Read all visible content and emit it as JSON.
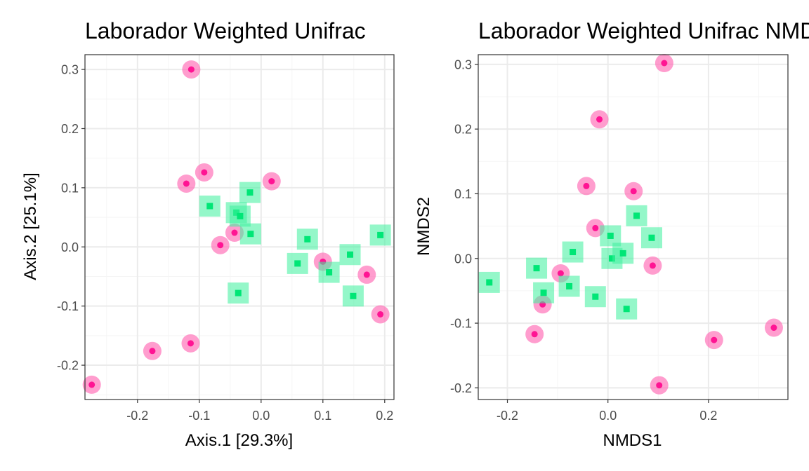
{
  "colors": {
    "circle_outer": "#ff69b4",
    "circle_inner": "#ff1493",
    "square_outer": "#3cf09c",
    "square_inner": "#00e676",
    "grid_major": "#ebebeb",
    "grid_minor": "#f5f5f5",
    "panel_border": "#333333",
    "tick_text": "#4d4d4d"
  },
  "chart_data": [
    {
      "type": "scatter",
      "title": "Laborador Weighted Unifrac",
      "xlabel": "Axis.1   [29.3%]",
      "ylabel": "Axis.2   [25.1%]",
      "xlim": [
        -0.285,
        0.215
      ],
      "ylim": [
        -0.258,
        0.325
      ],
      "xticks": [
        -0.2,
        -0.1,
        0.0,
        0.1,
        0.2
      ],
      "xtick_labels": [
        "-0.2",
        "-0.1",
        "0.0",
        "0.1",
        "0.2"
      ],
      "yticks": [
        -0.2,
        -0.1,
        0.0,
        0.1,
        0.2,
        0.3
      ],
      "ytick_labels": [
        "-0.2",
        "-0.1",
        "0.0",
        "0.1",
        "0.2",
        "0.3"
      ],
      "grid": true,
      "series": [
        {
          "marker": "circle",
          "points": [
            [
              -0.113,
              0.3
            ],
            [
              -0.092,
              0.126
            ],
            [
              -0.121,
              0.107
            ],
            [
              0.017,
              0.111
            ],
            [
              -0.066,
              0.003
            ],
            [
              -0.043,
              0.024
            ],
            [
              0.1,
              -0.025
            ],
            [
              0.171,
              -0.047
            ],
            [
              0.193,
              -0.114
            ],
            [
              -0.176,
              -0.176
            ],
            [
              -0.114,
              -0.163
            ],
            [
              -0.274,
              -0.233
            ]
          ]
        },
        {
          "marker": "square",
          "points": [
            [
              -0.083,
              0.069
            ],
            [
              -0.018,
              0.092
            ],
            [
              -0.04,
              0.058
            ],
            [
              -0.034,
              0.052
            ],
            [
              -0.017,
              0.022
            ],
            [
              0.075,
              0.013
            ],
            [
              0.059,
              -0.028
            ],
            [
              0.11,
              -0.043
            ],
            [
              0.144,
              -0.013
            ],
            [
              0.149,
              -0.083
            ],
            [
              0.193,
              0.02
            ],
            [
              -0.037,
              -0.078
            ]
          ]
        }
      ]
    },
    {
      "type": "scatter",
      "title": "Laborador Weighted Unifrac NMDS",
      "xlabel": "NMDS1",
      "ylabel": "NMDS2",
      "xlim": [
        -0.258,
        0.358
      ],
      "ylim": [
        -0.218,
        0.315
      ],
      "xticks": [
        -0.2,
        0.0,
        0.2
      ],
      "xtick_labels": [
        "-0.2",
        "0.0",
        "0.2"
      ],
      "yticks": [
        -0.2,
        -0.1,
        0.0,
        0.1,
        0.2,
        0.3
      ],
      "ytick_labels": [
        "-0.2",
        "-0.1",
        "0.0",
        "0.1",
        "0.2",
        "0.3"
      ],
      "grid": true,
      "series": [
        {
          "marker": "circle",
          "points": [
            [
              0.112,
              0.302
            ],
            [
              -0.017,
              0.215
            ],
            [
              -0.043,
              0.112
            ],
            [
              0.051,
              0.104
            ],
            [
              -0.025,
              0.047
            ],
            [
              -0.094,
              -0.023
            ],
            [
              -0.13,
              -0.071
            ],
            [
              -0.146,
              -0.117
            ],
            [
              0.089,
              -0.011
            ],
            [
              0.211,
              -0.126
            ],
            [
              0.33,
              -0.107
            ],
            [
              0.102,
              -0.196
            ]
          ]
        },
        {
          "marker": "square",
          "points": [
            [
              -0.236,
              -0.037
            ],
            [
              -0.142,
              -0.015
            ],
            [
              -0.128,
              -0.053
            ],
            [
              -0.077,
              -0.043
            ],
            [
              -0.07,
              0.01
            ],
            [
              -0.025,
              -0.059
            ],
            [
              0.005,
              0.035
            ],
            [
              0.008,
              0.0
            ],
            [
              0.03,
              0.008
            ],
            [
              0.037,
              -0.078
            ],
            [
              0.057,
              0.066
            ],
            [
              0.087,
              0.032
            ]
          ]
        }
      ]
    }
  ]
}
